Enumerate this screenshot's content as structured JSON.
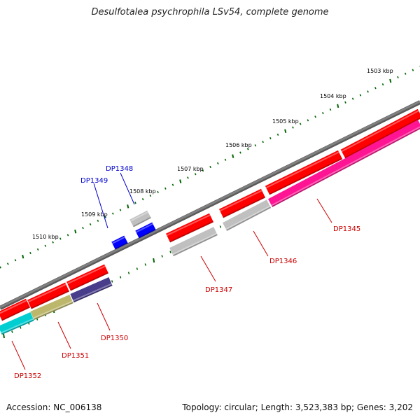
{
  "title": "Desulfotalea psychrophila LSv54, complete genome",
  "accession": "Accession: NC_006138",
  "summary": "Topology: circular; Length: 3,523,383 bp; Genes: 3,202",
  "ruler_labels": [
    "1503 kbp",
    "1504 kbp",
    "1505 kbp",
    "1506 kbp",
    "1507 kbp",
    "1508 kbp",
    "1509 kbp",
    "1510 kbp"
  ],
  "colors": {
    "backbone": "#808080",
    "forward_gene": "#ff0000",
    "reverse_gray": "#c0c0c0",
    "reverse_magenta": "#ff1493",
    "reverse_khaki": "#bdb76b",
    "reverse_navy": "#483d8b",
    "reverse_cyan": "#00ced1",
    "small_feature": "#0000ff",
    "tick": "#006400",
    "label_red": "#cc0000",
    "label_blue": "#0000cc"
  },
  "gene_labels": [
    {
      "name": "DP1345",
      "color": "#cc0000"
    },
    {
      "name": "DP1346",
      "color": "#cc0000"
    },
    {
      "name": "DP1347",
      "color": "#cc0000"
    },
    {
      "name": "DP1348",
      "color": "#0000cc"
    },
    {
      "name": "DP1349",
      "color": "#0000cc"
    },
    {
      "name": "DP1350",
      "color": "#cc0000"
    },
    {
      "name": "DP1351",
      "color": "#cc0000"
    },
    {
      "name": "DP1352",
      "color": "#cc0000"
    }
  ]
}
